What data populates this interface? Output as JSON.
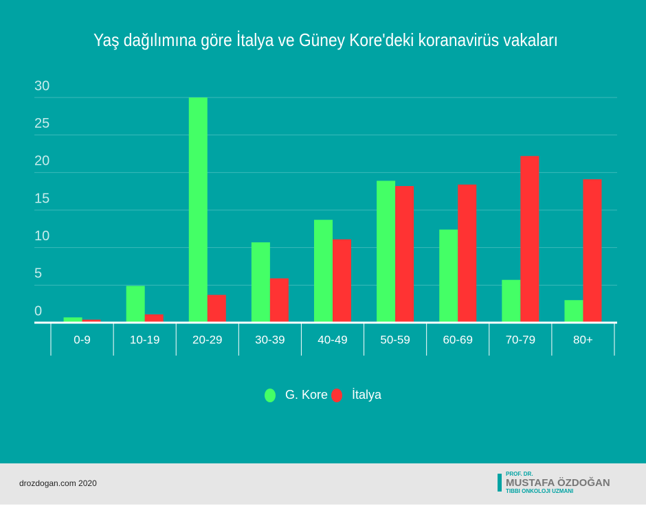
{
  "chart_data": {
    "type": "bar",
    "title": "Yaş dağılımına göre İtalya ve Güney Kore'deki koranavirüs vakaları",
    "categories": [
      "0-9",
      "10-19",
      "20-29",
      "30-39",
      "40-49",
      "50-59",
      "60-69",
      "70-79",
      "80+"
    ],
    "series": [
      {
        "name": "G. Kore",
        "color": "#44ff66",
        "values": [
          0.7,
          4.9,
          30,
          10.7,
          13.7,
          18.9,
          12.4,
          5.7,
          3.0
        ]
      },
      {
        "name": "İtalya",
        "color": "#ff3333",
        "values": [
          0.4,
          1.1,
          3.7,
          5.9,
          11.1,
          18.2,
          18.4,
          22.2,
          19.1
        ]
      }
    ],
    "ylim": [
      0,
      30
    ],
    "yticks": [
      0,
      5,
      10,
      15,
      20,
      25,
      30
    ],
    "grid": true,
    "legend": "bottom"
  },
  "footer": {
    "source": "drozdogan.com 2020",
    "logo_prefix": "PROF. DR.",
    "logo_name": "MUSTAFA ÖZDOĞAN",
    "logo_subtitle": "TIBBI ONKOLOJI UZMANI"
  }
}
